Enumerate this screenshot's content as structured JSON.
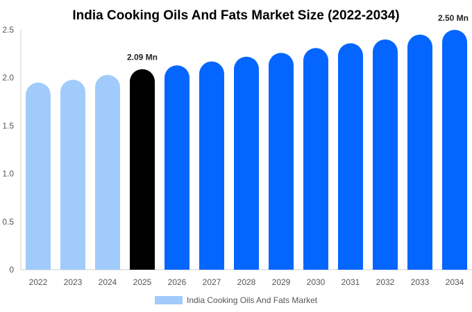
{
  "chart_data": {
    "type": "bar",
    "title": "India Cooking Oils And Fats Market Size (2022-2034)",
    "categories": [
      "2022",
      "2023",
      "2024",
      "2025",
      "2026",
      "2027",
      "2028",
      "2029",
      "2030",
      "2031",
      "2032",
      "2033",
      "2034"
    ],
    "series": [
      {
        "name": "India Cooking Oils And Fats Market",
        "values": [
          1.95,
          1.98,
          2.03,
          2.09,
          2.13,
          2.17,
          2.22,
          2.26,
          2.31,
          2.36,
          2.4,
          2.45,
          2.5
        ]
      }
    ],
    "yticks": [
      "0",
      "0.5",
      "1.0",
      "1.5",
      "2.0",
      "2.5"
    ],
    "ylim": [
      0,
      2.5
    ],
    "data_labels": [
      {
        "index": 3,
        "text": "2.09 Mn"
      },
      {
        "index": 12,
        "text": "2.50 Mn"
      }
    ],
    "colors": {
      "historical": "#a0cbfb",
      "current": "#000000",
      "forecast": "#0566ff",
      "axis": "#cccccc"
    },
    "legend": {
      "position": "bottom",
      "label": "India Cooking Oils And Fats Market",
      "color": "#a0cbfb"
    },
    "grid": false
  }
}
